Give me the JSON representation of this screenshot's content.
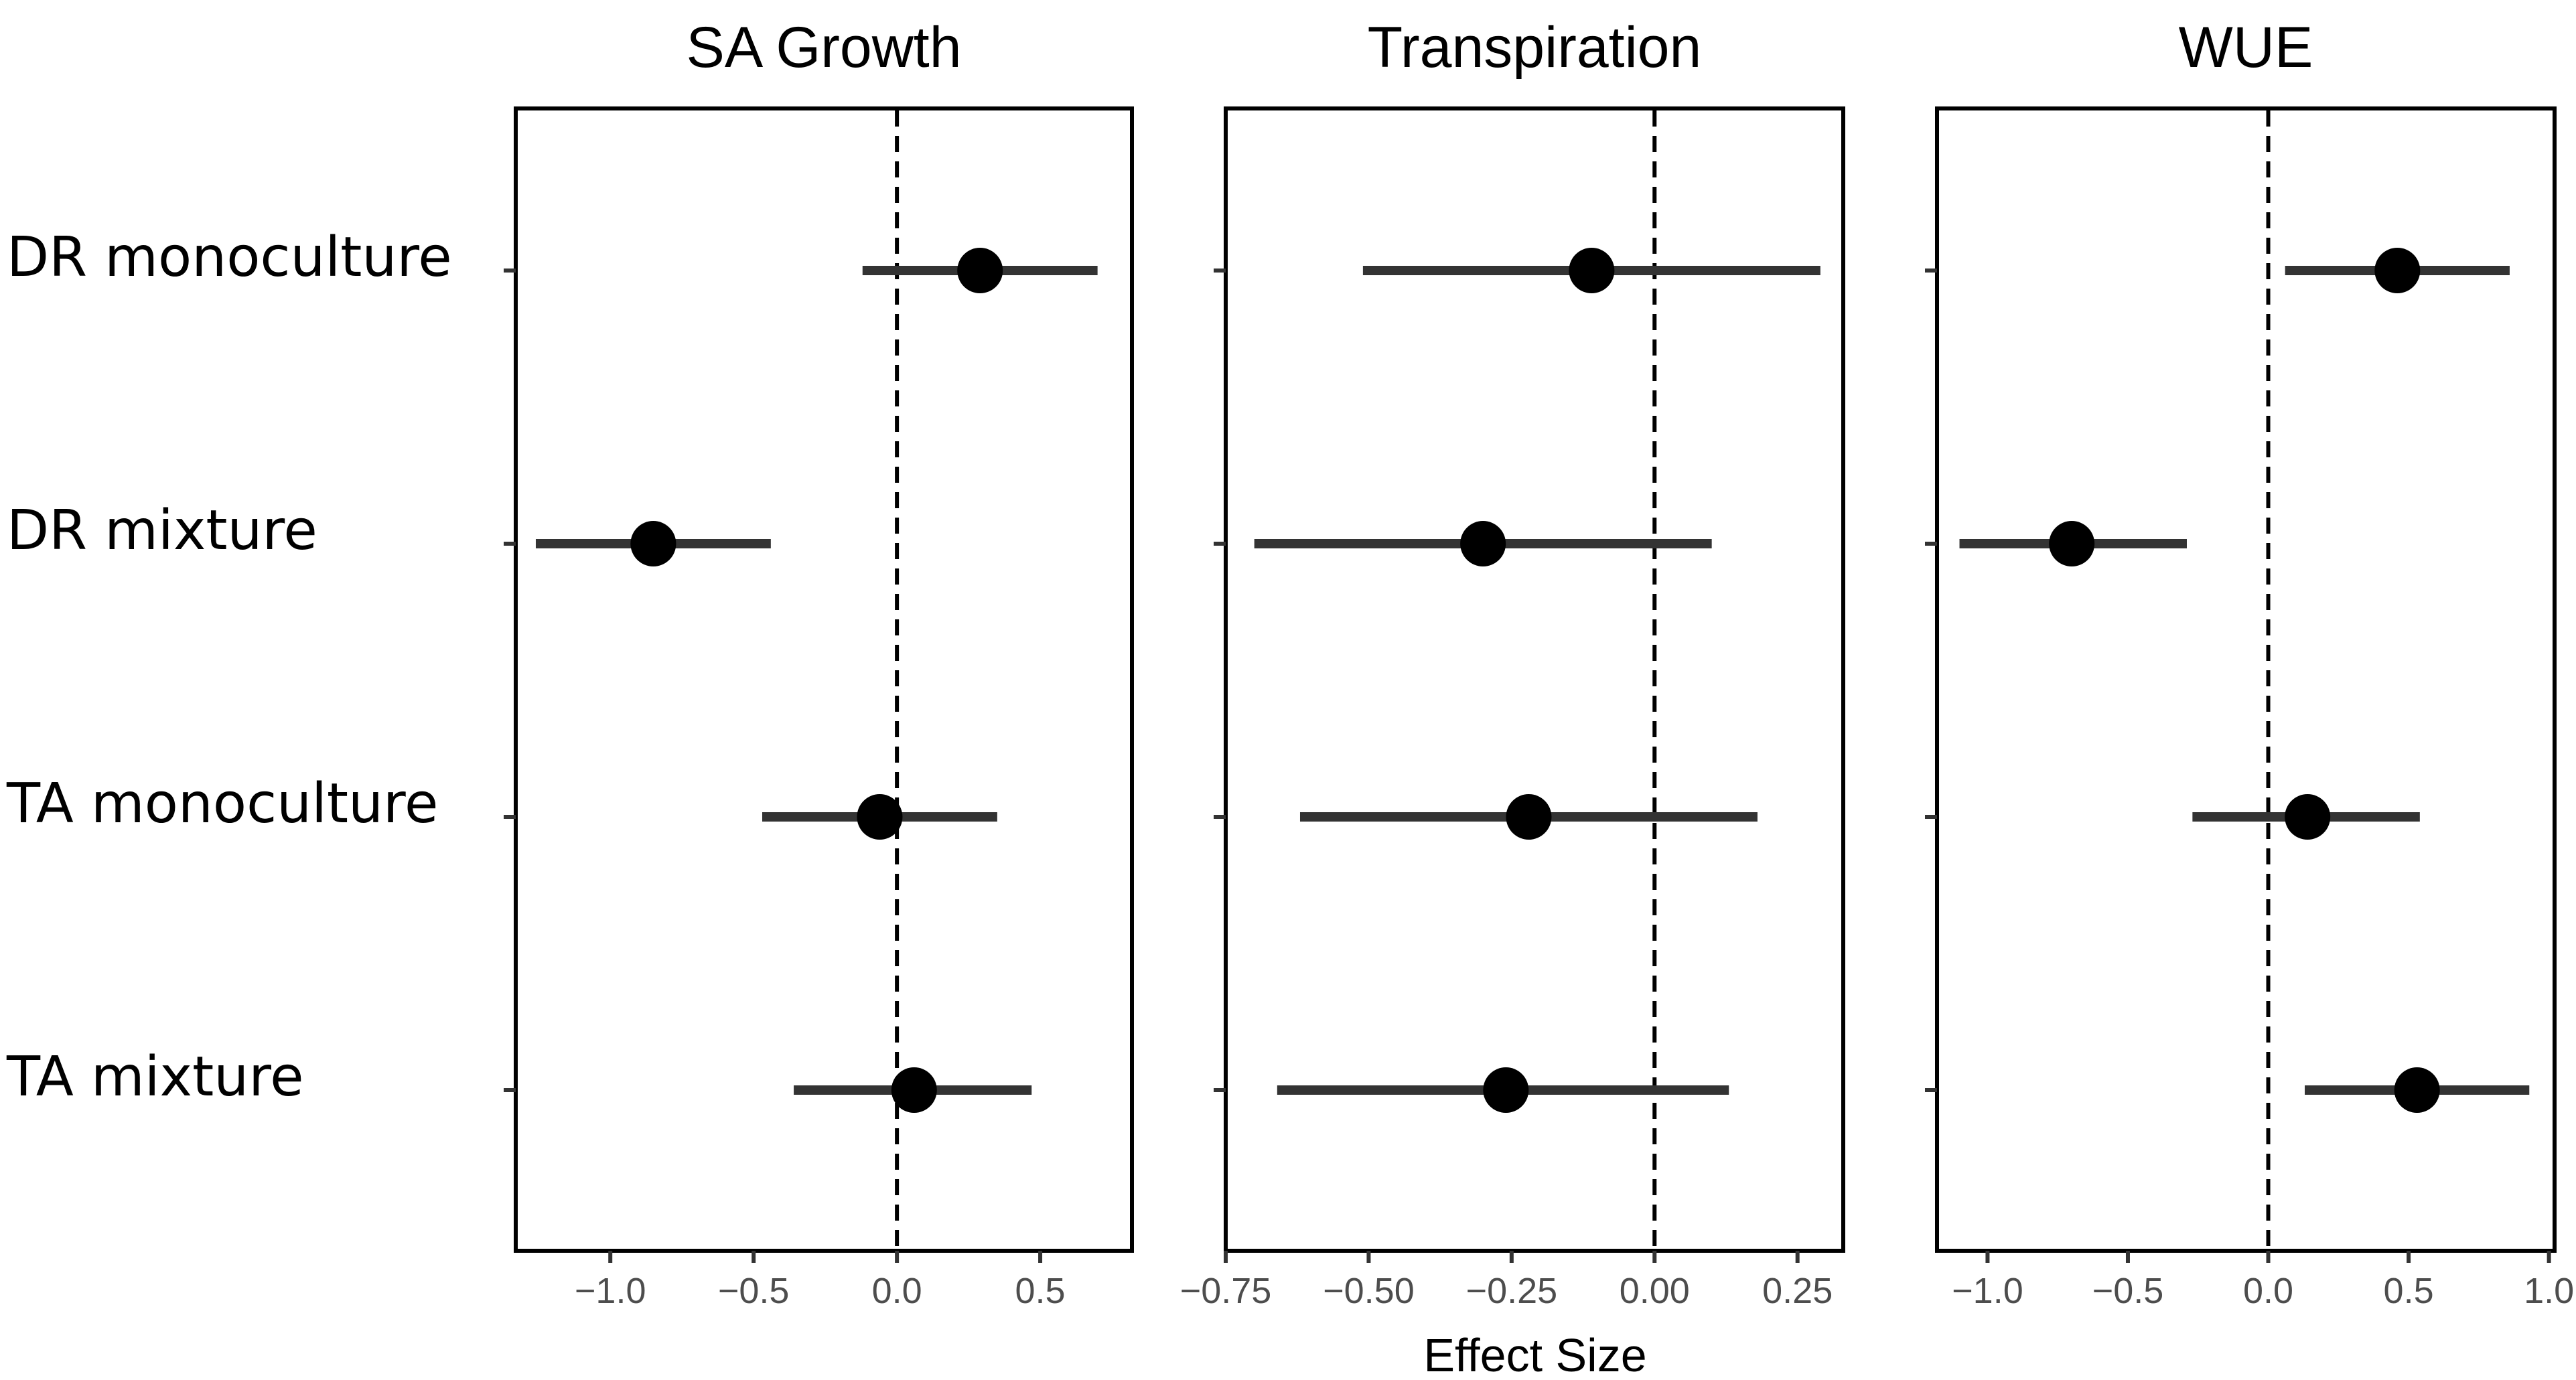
{
  "chart_data": {
    "type": "scatter",
    "subtype": "forest-plot",
    "xlabel": "Effect Size",
    "categories": [
      "DR monoculture",
      "DR mixture",
      "TA monoculture",
      "TA mixture"
    ],
    "colors": {
      "point": "#000000",
      "interval": "#333333",
      "zero_line": "#000000",
      "frame": "#000000"
    },
    "panels": [
      {
        "title": "SA Growth",
        "xlim": [
          -1.33,
          0.82
        ],
        "ticks": [
          -1.0,
          -0.5,
          0.0,
          0.5
        ],
        "tick_labels": [
          "−1.0",
          "−0.5",
          "0.0",
          "0.5"
        ],
        "points": [
          {
            "category": "DR monoculture",
            "estimate": 0.29,
            "lower": -0.12,
            "upper": 0.7
          },
          {
            "category": "DR mixture",
            "estimate": -0.85,
            "lower": -1.26,
            "upper": -0.44
          },
          {
            "category": "TA monoculture",
            "estimate": -0.06,
            "lower": -0.47,
            "upper": 0.35
          },
          {
            "category": "TA mixture",
            "estimate": 0.06,
            "lower": -0.36,
            "upper": 0.47
          }
        ]
      },
      {
        "title": "Transpiration",
        "xlim": [
          -0.75,
          0.33
        ],
        "ticks": [
          -0.75,
          -0.5,
          -0.25,
          0.0,
          0.25
        ],
        "tick_labels": [
          "−0.75",
          "−0.50",
          "−0.25",
          "0.00",
          "0.25"
        ],
        "points": [
          {
            "category": "DR monoculture",
            "estimate": -0.11,
            "lower": -0.51,
            "upper": 0.29
          },
          {
            "category": "DR mixture",
            "estimate": -0.3,
            "lower": -0.7,
            "upper": 0.1
          },
          {
            "category": "TA monoculture",
            "estimate": -0.22,
            "lower": -0.62,
            "upper": 0.18
          },
          {
            "category": "TA mixture",
            "estimate": -0.26,
            "lower": -0.66,
            "upper": 0.13
          }
        ]
      },
      {
        "title": "WUE",
        "xlim": [
          -1.18,
          1.02
        ],
        "ticks": [
          -1.0,
          -0.5,
          0.0,
          0.5,
          1.0
        ],
        "tick_labels": [
          "−1.0",
          "−0.5",
          "0.0",
          "0.5",
          "1.0"
        ],
        "points": [
          {
            "category": "DR monoculture",
            "estimate": 0.46,
            "lower": 0.06,
            "upper": 0.86
          },
          {
            "category": "DR mixture",
            "estimate": -0.7,
            "lower": -1.1,
            "upper": -0.29
          },
          {
            "category": "TA monoculture",
            "estimate": 0.14,
            "lower": -0.27,
            "upper": 0.54
          },
          {
            "category": "TA mixture",
            "estimate": 0.53,
            "lower": 0.13,
            "upper": 0.93
          }
        ]
      }
    ]
  }
}
